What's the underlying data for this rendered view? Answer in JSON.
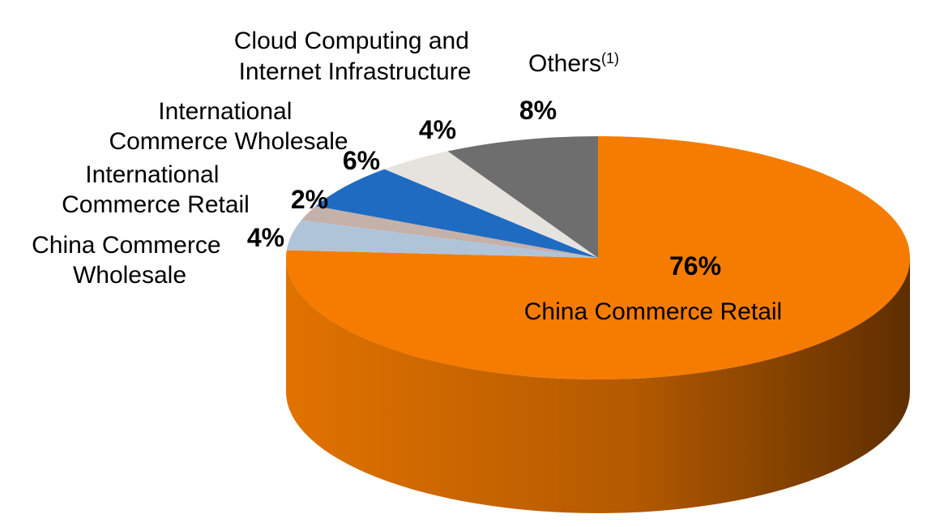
{
  "chart_data": {
    "type": "pie",
    "title": "",
    "slices": [
      {
        "key": "china-commerce-retail",
        "name": "China Commerce Retail",
        "value": 76,
        "value_label": "76%",
        "color": "#F57C00"
      },
      {
        "key": "china-commerce-wholesale",
        "name": "China Commerce Wholesale",
        "value": 4,
        "value_label": "4%",
        "color": "#AFC4D8"
      },
      {
        "key": "international-commerce-retail",
        "name": "International Commerce Retail",
        "value": 2,
        "value_label": "2%",
        "color": "#C4B1A9"
      },
      {
        "key": "international-commerce-wholesale",
        "name": "International Commerce Wholesale",
        "value": 6,
        "value_label": "6%",
        "color": "#1F6BC1"
      },
      {
        "key": "cloud-computing",
        "name": "Cloud Computing and Internet Infrastructure",
        "value": 4,
        "value_label": "4%",
        "color": "#E6E2DE"
      },
      {
        "key": "others",
        "name": "Others",
        "footnote": "(1)",
        "value": 8,
        "value_label": "8%",
        "color": "#6E6E6E"
      }
    ],
    "style": "3d",
    "legend": "none"
  }
}
